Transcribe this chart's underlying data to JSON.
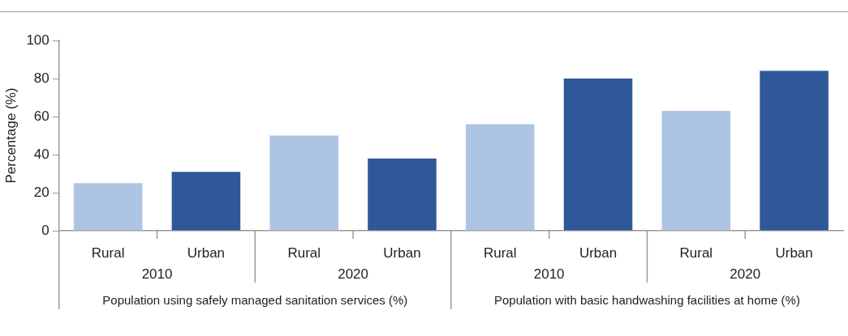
{
  "chart_data": {
    "type": "bar",
    "ylabel": "Percentage (%)",
    "categories": [
      "Rural",
      "Urban",
      "Rural",
      "Urban",
      "Rural",
      "Urban",
      "Rural",
      "Urban"
    ],
    "values": [
      25,
      31,
      50,
      38,
      56,
      80,
      63,
      84
    ],
    "colors": [
      "#aec4e4",
      "#2e5899",
      "#aec4e4",
      "#2e5899",
      "#aec4e4",
      "#2e5899",
      "#aec4e4",
      "#2e5899"
    ],
    "ylim": [
      0,
      100
    ],
    "yticks": [
      0,
      20,
      40,
      60,
      80,
      100
    ],
    "grid": false,
    "legend": false,
    "annotations": [
      "2010",
      "2020",
      "2010",
      "2020",
      "Population using safely managed sanitation services (%)",
      "Population with basic handwashing facilities at home (%)"
    ]
  }
}
